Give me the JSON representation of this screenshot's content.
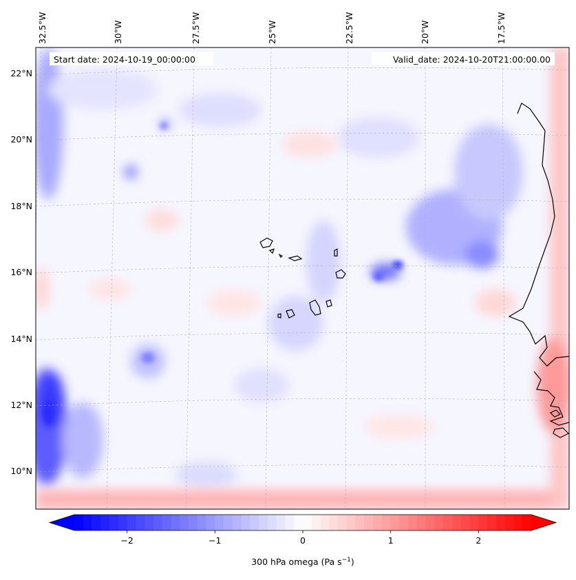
{
  "map": {
    "start_label": "Start date: 2024-10-19_00:00:00",
    "valid_label": "Valid_date: 2024-10-20T21:00:00.00",
    "lon_labels": [
      "32.5°W",
      "30°W",
      "27.5°W",
      "25°W",
      "22.5°W",
      "20°W",
      "17.5°W"
    ],
    "lat_labels": [
      "22°N",
      "20°N",
      "18°N",
      "16°N",
      "14°N",
      "12°N",
      "10°N"
    ],
    "field": "300 hPa omega",
    "region": "Cabo Verde and West African coast"
  },
  "colorbar": {
    "label_prefix": "300 hPa omega (Pa s",
    "label_exp": "−1",
    "label_suffix": ")",
    "ticks": [
      "−2",
      "−1",
      "0",
      "1",
      "2"
    ],
    "tick_values": [
      -2,
      -1,
      0,
      1,
      2
    ],
    "range": [
      -2.6,
      2.6
    ],
    "cmap": "bwr",
    "color_min": "#0000ff",
    "color_mid": "#ffffff",
    "color_max": "#ff0000"
  }
}
